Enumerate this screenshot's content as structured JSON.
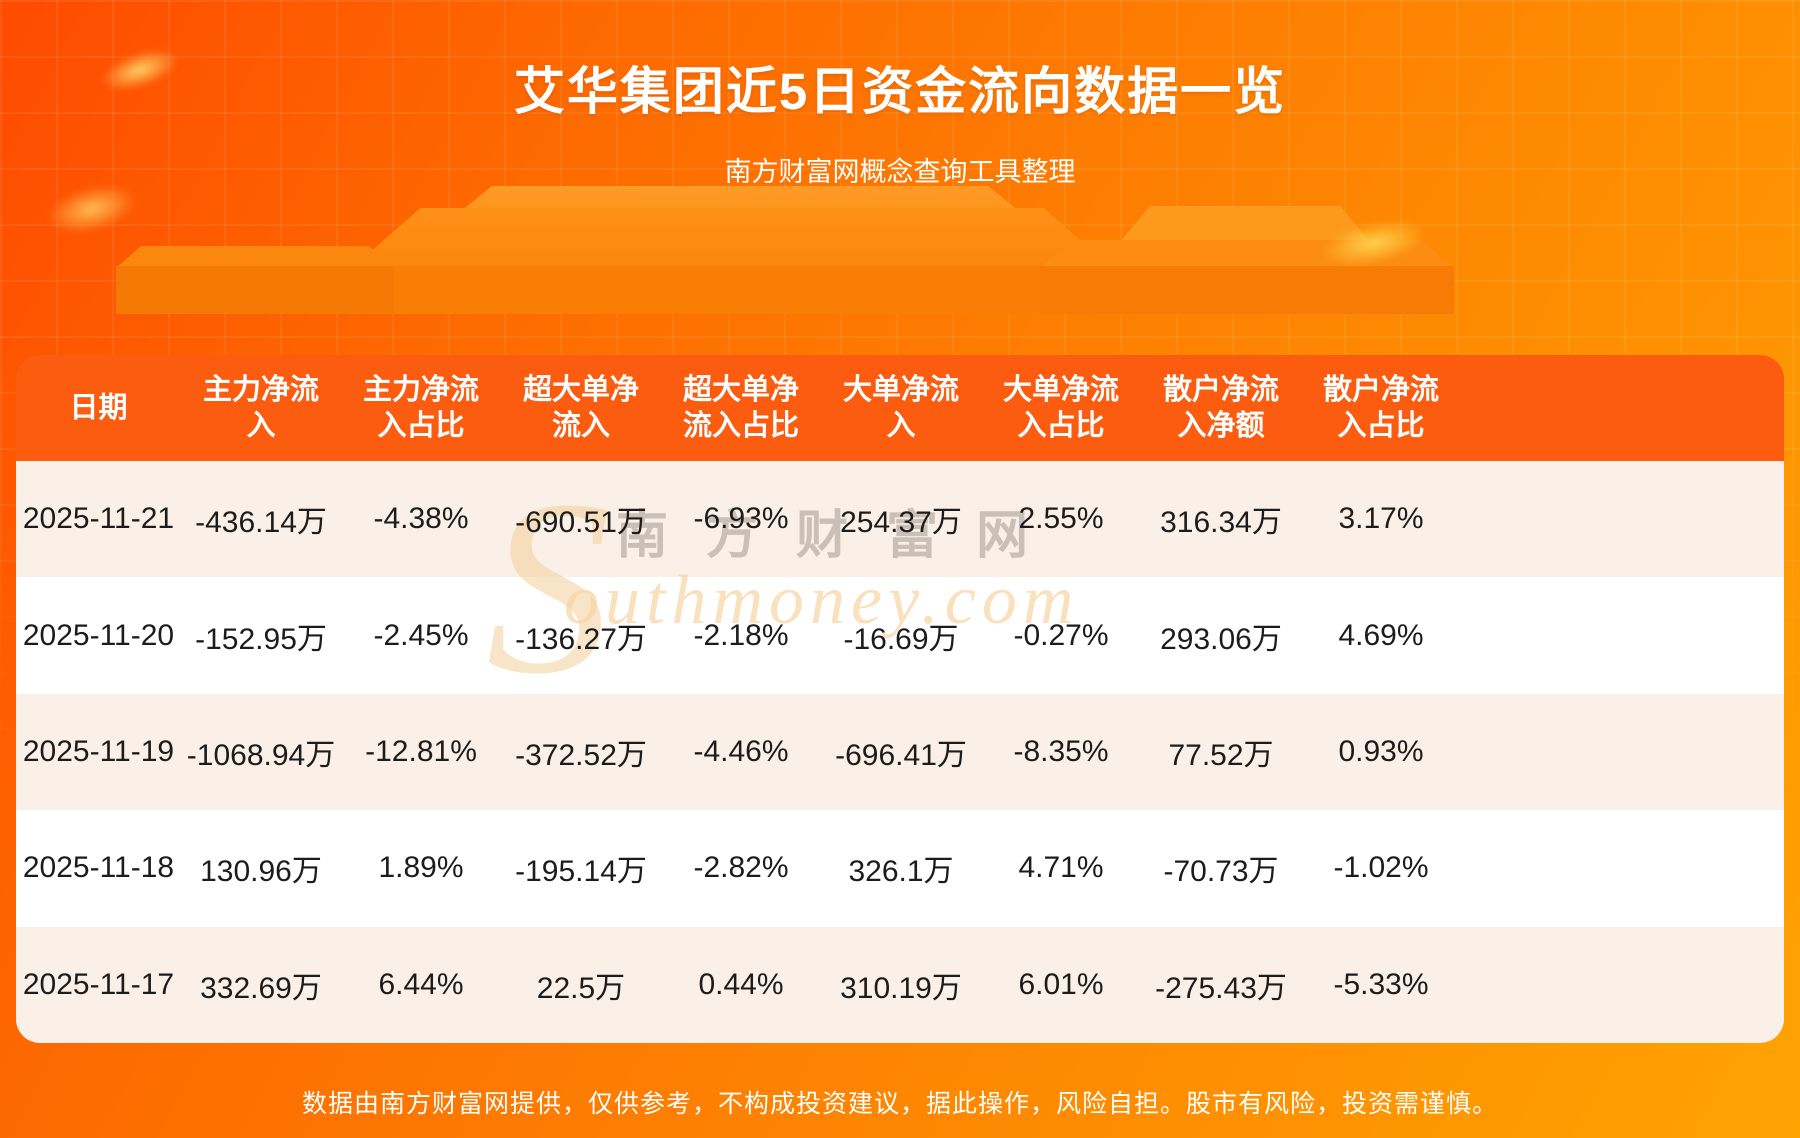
{
  "page": {
    "title": "艾华集团近5日资金流向数据一览",
    "subtitle": "南方财富网概念查询工具整理",
    "footer": "数据由南方财富网提供，仅供参考，不构成投资建议，据此操作，风险自担。股市有风险，投资需谨慎。"
  },
  "watermark": {
    "s": "S",
    "cn": "南方财富网",
    "en": "outhmoney.com"
  },
  "colors": {
    "background_top": "#fe4b01",
    "background_bottom": "#ffa303",
    "table_header": "#fb5c10",
    "row_alt": "#faf0e7",
    "row_white": "#ffffff",
    "text_dark": "#1c1c1c",
    "text_white": "#ffffff"
  },
  "chart_data": {
    "type": "table",
    "title": "艾华集团近5日资金流向数据一览",
    "columns": [
      "日期",
      "主力净流入",
      "主力净流入占比",
      "超大单净流入",
      "超大单净流入占比",
      "大单净流入",
      "大单净流入占比",
      "散户净流入净额",
      "散户净流入占比"
    ],
    "rows": [
      [
        "2025-11-21",
        "-436.14万",
        "-4.38%",
        "-690.51万",
        "-6.93%",
        "254.37万",
        "2.55%",
        "316.34万",
        "3.17%"
      ],
      [
        "2025-11-20",
        "-152.95万",
        "-2.45%",
        "-136.27万",
        "-2.18%",
        "-16.69万",
        "-0.27%",
        "293.06万",
        "4.69%"
      ],
      [
        "2025-11-19",
        "-1068.94万",
        "-12.81%",
        "-372.52万",
        "-4.46%",
        "-696.41万",
        "-8.35%",
        "77.52万",
        "0.93%"
      ],
      [
        "2025-11-18",
        "130.96万",
        "1.89%",
        "-195.14万",
        "-2.82%",
        "326.1万",
        "4.71%",
        "-70.73万",
        "-1.02%"
      ],
      [
        "2025-11-17",
        "332.69万",
        "6.44%",
        "22.5万",
        "0.44%",
        "310.19万",
        "6.01%",
        "-275.43万",
        "-5.33%"
      ]
    ]
  }
}
